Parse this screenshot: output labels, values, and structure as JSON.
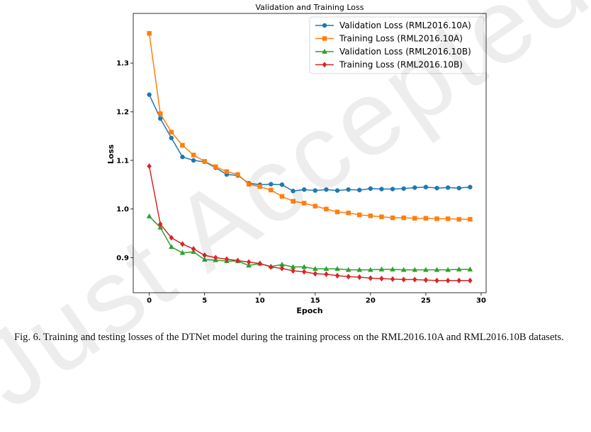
{
  "chart_data": {
    "type": "line",
    "title": "Validation and Training Loss",
    "xlabel": "Epoch",
    "ylabel": "Loss",
    "xlim": [
      -1.45,
      30.45
    ],
    "ylim": [
      0.828,
      1.402
    ],
    "xticks": [
      0,
      5,
      10,
      15,
      20,
      25,
      30
    ],
    "yticks": [
      0.9,
      1.0,
      1.1,
      1.2,
      1.3
    ],
    "grid": false,
    "legend_position": "top-right",
    "x": [
      0,
      1,
      2,
      3,
      4,
      5,
      6,
      7,
      8,
      9,
      10,
      11,
      12,
      13,
      14,
      15,
      16,
      17,
      18,
      19,
      20,
      21,
      22,
      23,
      24,
      25,
      26,
      27,
      28,
      29
    ],
    "series": [
      {
        "name": "Validation Loss (RML2016.10A)",
        "color": "#1f77b4",
        "marker": "circle",
        "values": [
          1.235,
          1.186,
          1.146,
          1.107,
          1.1,
          1.097,
          1.085,
          1.071,
          1.069,
          1.053,
          1.05,
          1.051,
          1.05,
          1.037,
          1.04,
          1.038,
          1.04,
          1.038,
          1.04,
          1.039,
          1.042,
          1.041,
          1.041,
          1.042,
          1.044,
          1.045,
          1.043,
          1.044,
          1.043,
          1.045
        ]
      },
      {
        "name": "Training Loss (RML2016.10A)",
        "color": "#ff7f0e",
        "marker": "square",
        "values": [
          1.361,
          1.196,
          1.158,
          1.131,
          1.111,
          1.098,
          1.087,
          1.077,
          1.071,
          1.051,
          1.046,
          1.039,
          1.026,
          1.016,
          1.012,
          1.006,
          1.0,
          0.994,
          0.992,
          0.988,
          0.986,
          0.984,
          0.982,
          0.982,
          0.981,
          0.981,
          0.98,
          0.98,
          0.979,
          0.979
        ]
      },
      {
        "name": "Validation Loss (RML2016.10B)",
        "color": "#2ca02c",
        "marker": "triangle",
        "values": [
          0.985,
          0.962,
          0.922,
          0.91,
          0.912,
          0.896,
          0.895,
          0.893,
          0.893,
          0.884,
          0.888,
          0.882,
          0.886,
          0.881,
          0.881,
          0.877,
          0.877,
          0.877,
          0.875,
          0.875,
          0.875,
          0.876,
          0.876,
          0.875,
          0.875,
          0.875,
          0.875,
          0.875,
          0.876,
          0.876
        ]
      },
      {
        "name": "Training Loss (RML2016.10B)",
        "color": "#d62728",
        "marker": "diamond",
        "values": [
          1.088,
          0.969,
          0.941,
          0.928,
          0.918,
          0.905,
          0.9,
          0.897,
          0.894,
          0.891,
          0.888,
          0.881,
          0.878,
          0.873,
          0.871,
          0.867,
          0.866,
          0.863,
          0.861,
          0.86,
          0.858,
          0.857,
          0.856,
          0.855,
          0.855,
          0.854,
          0.853,
          0.853,
          0.853,
          0.853
        ]
      }
    ]
  },
  "caption": "Fig. 6.  Training and testing losses of the DTNet model during the training process on the RML2016.10A and RML2016.10B datasets.",
  "watermark": "Just Accepted"
}
